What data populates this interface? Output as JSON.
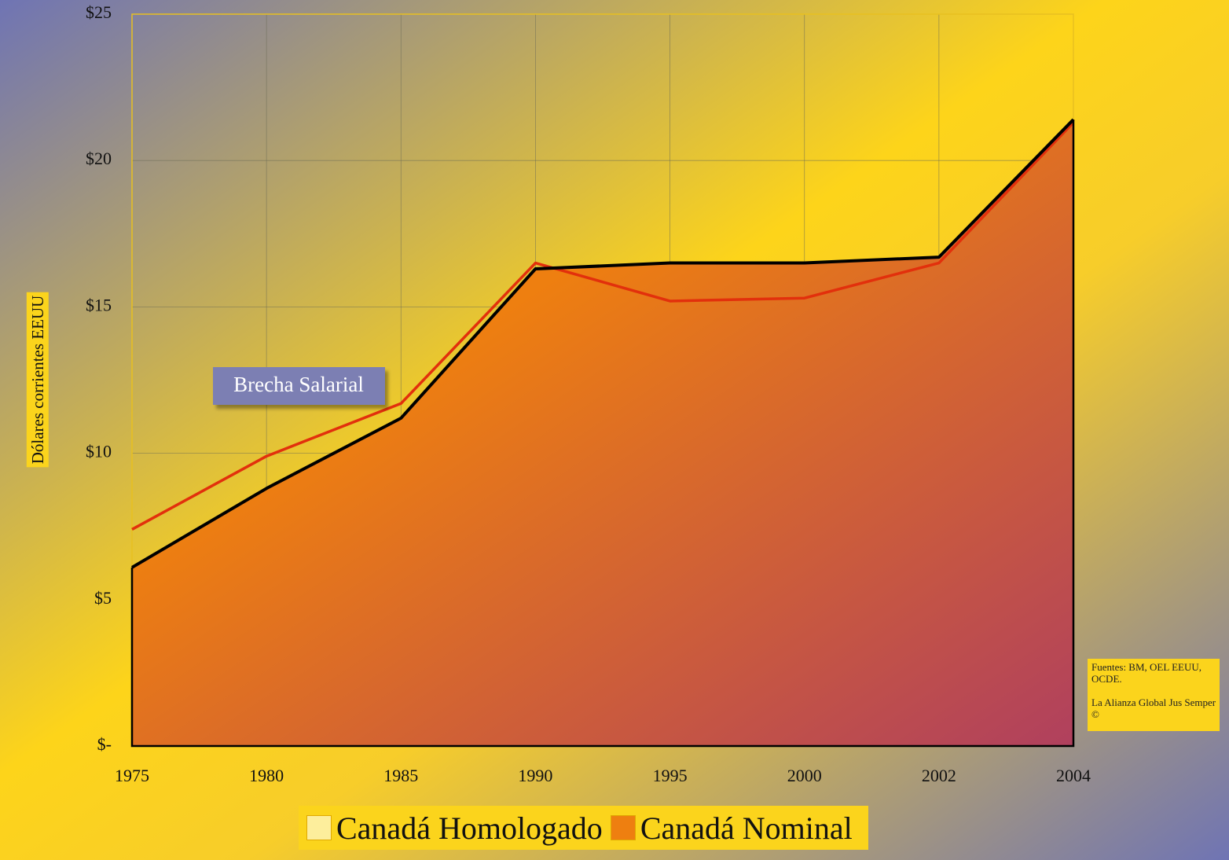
{
  "chart_data": {
    "type": "area",
    "categories": [
      "1975",
      "1980",
      "1985",
      "1990",
      "1995",
      "2000",
      "2002",
      "2004"
    ],
    "series": [
      {
        "name": "Canadá Homologado",
        "color": "#fdee9c",
        "line_color": "#e2300c",
        "values": [
          7.4,
          9.9,
          11.7,
          16.5,
          15.2,
          15.3,
          16.5,
          21.3
        ]
      },
      {
        "name": "Canadá Nominal",
        "color": "#ee7f10",
        "line_color": "#000000",
        "values": [
          6.1,
          8.8,
          11.2,
          16.3,
          16.5,
          16.5,
          16.7,
          21.4
        ]
      }
    ],
    "ylim": [
      0,
      25
    ],
    "yticks": [
      {
        "value": 0,
        "label": "$-"
      },
      {
        "value": 5,
        "label": "$5"
      },
      {
        "value": 10,
        "label": "$10"
      },
      {
        "value": 15,
        "label": "$15"
      },
      {
        "value": 20,
        "label": "$20"
      },
      {
        "value": 25,
        "label": "$25"
      }
    ],
    "y_axis_label": "Dólares corrientes EEUU",
    "annotation": "Brecha Salarial",
    "source": [
      "Fuentes: BM, OEL EEUU, OCDE.",
      "La Alianza Global Jus Semper ©"
    ],
    "grid": true,
    "legend": "bottom"
  }
}
